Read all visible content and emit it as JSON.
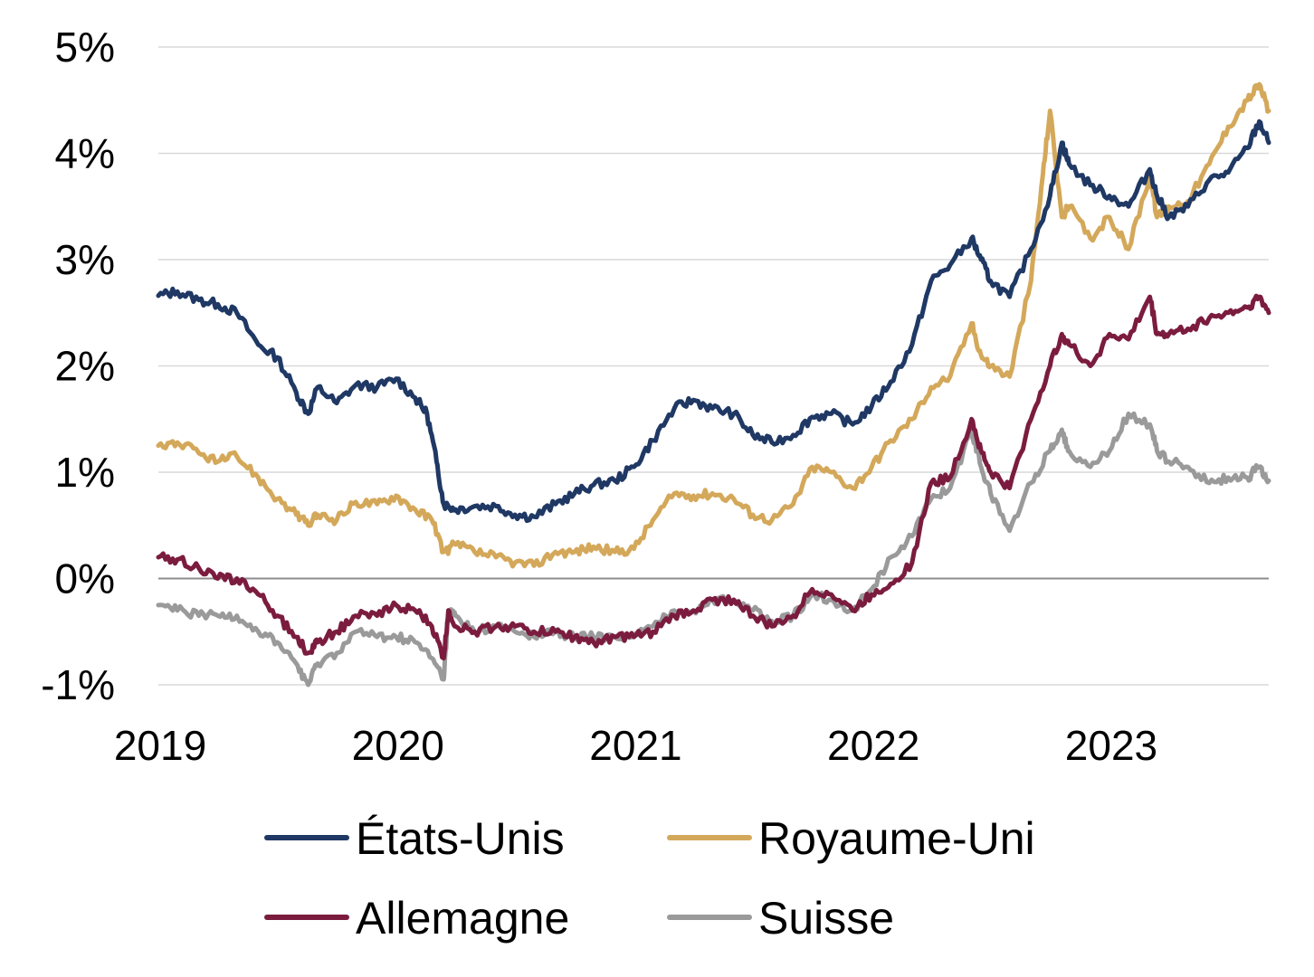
{
  "chart_data": {
    "type": "line",
    "title": "",
    "xlabel": "",
    "ylabel": "",
    "xlim": [
      2019.0,
      2023.67
    ],
    "ylim": [
      -1,
      5
    ],
    "grid": true,
    "legend_position": "bottom",
    "x_ticks": [
      {
        "value": 2019,
        "label": "2019"
      },
      {
        "value": 2020,
        "label": "2020"
      },
      {
        "value": 2021,
        "label": "2021"
      },
      {
        "value": 2022,
        "label": "2022"
      },
      {
        "value": 2023,
        "label": "2023"
      }
    ],
    "y_ticks": [
      {
        "value": -1,
        "label": "-1%"
      },
      {
        "value": 0,
        "label": "0%"
      },
      {
        "value": 1,
        "label": "1%"
      },
      {
        "value": 2,
        "label": "2%"
      },
      {
        "value": 3,
        "label": "3%"
      },
      {
        "value": 4,
        "label": "4%"
      },
      {
        "value": 5,
        "label": "5%"
      }
    ],
    "series": [
      {
        "name": "États-Unis",
        "color": "#1f3864",
        "points": [
          [
            2019.0,
            2.66
          ],
          [
            2019.08,
            2.7
          ],
          [
            2019.17,
            2.62
          ],
          [
            2019.25,
            2.58
          ],
          [
            2019.33,
            2.5
          ],
          [
            2019.42,
            2.2
          ],
          [
            2019.5,
            2.08
          ],
          [
            2019.58,
            1.75
          ],
          [
            2019.63,
            1.55
          ],
          [
            2019.67,
            1.8
          ],
          [
            2019.75,
            1.65
          ],
          [
            2019.83,
            1.82
          ],
          [
            2019.92,
            1.8
          ],
          [
            2020.0,
            1.88
          ],
          [
            2020.08,
            1.7
          ],
          [
            2020.13,
            1.55
          ],
          [
            2020.17,
            1.1
          ],
          [
            2020.2,
            0.7
          ],
          [
            2020.25,
            0.65
          ],
          [
            2020.33,
            0.68
          ],
          [
            2020.42,
            0.68
          ],
          [
            2020.5,
            0.6
          ],
          [
            2020.58,
            0.58
          ],
          [
            2020.67,
            0.7
          ],
          [
            2020.75,
            0.8
          ],
          [
            2020.83,
            0.88
          ],
          [
            2020.92,
            0.92
          ],
          [
            2021.0,
            1.05
          ],
          [
            2021.08,
            1.3
          ],
          [
            2021.17,
            1.6
          ],
          [
            2021.25,
            1.68
          ],
          [
            2021.33,
            1.6
          ],
          [
            2021.42,
            1.55
          ],
          [
            2021.5,
            1.35
          ],
          [
            2021.58,
            1.28
          ],
          [
            2021.67,
            1.35
          ],
          [
            2021.75,
            1.52
          ],
          [
            2021.83,
            1.55
          ],
          [
            2021.92,
            1.45
          ],
          [
            2022.0,
            1.62
          ],
          [
            2022.08,
            1.85
          ],
          [
            2022.17,
            2.2
          ],
          [
            2022.25,
            2.8
          ],
          [
            2022.33,
            2.95
          ],
          [
            2022.42,
            3.2
          ],
          [
            2022.46,
            3.0
          ],
          [
            2022.5,
            2.8
          ],
          [
            2022.58,
            2.65
          ],
          [
            2022.67,
            3.1
          ],
          [
            2022.75,
            3.6
          ],
          [
            2022.8,
            4.1
          ],
          [
            2022.83,
            3.9
          ],
          [
            2022.92,
            3.7
          ],
          [
            2023.0,
            3.6
          ],
          [
            2023.08,
            3.5
          ],
          [
            2023.17,
            3.85
          ],
          [
            2023.2,
            3.6
          ],
          [
            2023.25,
            3.4
          ],
          [
            2023.33,
            3.5
          ],
          [
            2023.42,
            3.75
          ],
          [
            2023.5,
            3.82
          ],
          [
            2023.58,
            4.05
          ],
          [
            2023.63,
            4.3
          ],
          [
            2023.67,
            4.1
          ]
        ]
      },
      {
        "name": "Royaume-Uni",
        "color": "#d4a85a",
        "points": [
          [
            2019.0,
            1.25
          ],
          [
            2019.08,
            1.28
          ],
          [
            2019.17,
            1.18
          ],
          [
            2019.25,
            1.1
          ],
          [
            2019.33,
            1.15
          ],
          [
            2019.42,
            0.95
          ],
          [
            2019.5,
            0.75
          ],
          [
            2019.58,
            0.6
          ],
          [
            2019.63,
            0.5
          ],
          [
            2019.67,
            0.6
          ],
          [
            2019.75,
            0.55
          ],
          [
            2019.83,
            0.72
          ],
          [
            2019.92,
            0.7
          ],
          [
            2020.0,
            0.78
          ],
          [
            2020.08,
            0.65
          ],
          [
            2020.15,
            0.55
          ],
          [
            2020.2,
            0.25
          ],
          [
            2020.25,
            0.32
          ],
          [
            2020.33,
            0.25
          ],
          [
            2020.42,
            0.2
          ],
          [
            2020.5,
            0.15
          ],
          [
            2020.58,
            0.12
          ],
          [
            2020.67,
            0.25
          ],
          [
            2020.75,
            0.25
          ],
          [
            2020.83,
            0.3
          ],
          [
            2020.92,
            0.25
          ],
          [
            2021.0,
            0.28
          ],
          [
            2021.08,
            0.55
          ],
          [
            2021.17,
            0.8
          ],
          [
            2021.25,
            0.78
          ],
          [
            2021.33,
            0.8
          ],
          [
            2021.42,
            0.75
          ],
          [
            2021.5,
            0.6
          ],
          [
            2021.58,
            0.55
          ],
          [
            2021.67,
            0.7
          ],
          [
            2021.75,
            1.05
          ],
          [
            2021.83,
            1.0
          ],
          [
            2021.92,
            0.85
          ],
          [
            2022.0,
            1.05
          ],
          [
            2022.08,
            1.3
          ],
          [
            2022.17,
            1.5
          ],
          [
            2022.25,
            1.8
          ],
          [
            2022.33,
            1.9
          ],
          [
            2022.42,
            2.4
          ],
          [
            2022.46,
            2.1
          ],
          [
            2022.5,
            2.0
          ],
          [
            2022.58,
            1.9
          ],
          [
            2022.67,
            2.8
          ],
          [
            2022.72,
            3.8
          ],
          [
            2022.75,
            4.4
          ],
          [
            2022.8,
            3.4
          ],
          [
            2022.83,
            3.5
          ],
          [
            2022.92,
            3.2
          ],
          [
            2023.0,
            3.4
          ],
          [
            2023.08,
            3.1
          ],
          [
            2023.17,
            3.8
          ],
          [
            2023.2,
            3.4
          ],
          [
            2023.25,
            3.5
          ],
          [
            2023.33,
            3.55
          ],
          [
            2023.42,
            3.9
          ],
          [
            2023.5,
            4.25
          ],
          [
            2023.58,
            4.5
          ],
          [
            2023.63,
            4.65
          ],
          [
            2023.67,
            4.4
          ]
        ]
      },
      {
        "name": "Allemagne",
        "color": "#7b1c3e",
        "points": [
          [
            2019.0,
            0.2
          ],
          [
            2019.08,
            0.18
          ],
          [
            2019.17,
            0.1
          ],
          [
            2019.25,
            0.0
          ],
          [
            2019.33,
            0.0
          ],
          [
            2019.42,
            -0.15
          ],
          [
            2019.5,
            -0.35
          ],
          [
            2019.58,
            -0.55
          ],
          [
            2019.63,
            -0.7
          ],
          [
            2019.67,
            -0.6
          ],
          [
            2019.75,
            -0.5
          ],
          [
            2019.83,
            -0.35
          ],
          [
            2019.92,
            -0.35
          ],
          [
            2020.0,
            -0.25
          ],
          [
            2020.08,
            -0.3
          ],
          [
            2020.15,
            -0.45
          ],
          [
            2020.2,
            -0.75
          ],
          [
            2020.22,
            -0.3
          ],
          [
            2020.25,
            -0.45
          ],
          [
            2020.33,
            -0.5
          ],
          [
            2020.42,
            -0.45
          ],
          [
            2020.5,
            -0.45
          ],
          [
            2020.58,
            -0.5
          ],
          [
            2020.67,
            -0.5
          ],
          [
            2020.75,
            -0.55
          ],
          [
            2020.83,
            -0.6
          ],
          [
            2020.92,
            -0.55
          ],
          [
            2021.0,
            -0.55
          ],
          [
            2021.08,
            -0.5
          ],
          [
            2021.17,
            -0.35
          ],
          [
            2021.25,
            -0.3
          ],
          [
            2021.33,
            -0.2
          ],
          [
            2021.42,
            -0.2
          ],
          [
            2021.5,
            -0.35
          ],
          [
            2021.58,
            -0.45
          ],
          [
            2021.67,
            -0.35
          ],
          [
            2021.75,
            -0.1
          ],
          [
            2021.83,
            -0.15
          ],
          [
            2021.92,
            -0.3
          ],
          [
            2022.0,
            -0.15
          ],
          [
            2022.08,
            -0.05
          ],
          [
            2022.17,
            0.15
          ],
          [
            2022.25,
            0.9
          ],
          [
            2022.33,
            0.95
          ],
          [
            2022.42,
            1.5
          ],
          [
            2022.46,
            1.2
          ],
          [
            2022.5,
            1.0
          ],
          [
            2022.58,
            0.85
          ],
          [
            2022.67,
            1.5
          ],
          [
            2022.75,
            2.0
          ],
          [
            2022.8,
            2.3
          ],
          [
            2022.83,
            2.2
          ],
          [
            2022.92,
            2.0
          ],
          [
            2023.0,
            2.3
          ],
          [
            2023.08,
            2.25
          ],
          [
            2023.17,
            2.65
          ],
          [
            2023.2,
            2.3
          ],
          [
            2023.25,
            2.3
          ],
          [
            2023.33,
            2.35
          ],
          [
            2023.42,
            2.45
          ],
          [
            2023.5,
            2.5
          ],
          [
            2023.58,
            2.55
          ],
          [
            2023.63,
            2.65
          ],
          [
            2023.67,
            2.5
          ]
        ]
      },
      {
        "name": "Suisse",
        "color": "#9a9a9a",
        "points": [
          [
            2019.0,
            -0.25
          ],
          [
            2019.08,
            -0.3
          ],
          [
            2019.17,
            -0.35
          ],
          [
            2019.25,
            -0.35
          ],
          [
            2019.33,
            -0.35
          ],
          [
            2019.42,
            -0.5
          ],
          [
            2019.5,
            -0.6
          ],
          [
            2019.58,
            -0.8
          ],
          [
            2019.63,
            -1.0
          ],
          [
            2019.67,
            -0.8
          ],
          [
            2019.75,
            -0.7
          ],
          [
            2019.83,
            -0.5
          ],
          [
            2019.92,
            -0.55
          ],
          [
            2020.0,
            -0.55
          ],
          [
            2020.08,
            -0.6
          ],
          [
            2020.15,
            -0.75
          ],
          [
            2020.2,
            -0.95
          ],
          [
            2020.22,
            -0.3
          ],
          [
            2020.25,
            -0.35
          ],
          [
            2020.33,
            -0.5
          ],
          [
            2020.42,
            -0.45
          ],
          [
            2020.5,
            -0.5
          ],
          [
            2020.58,
            -0.55
          ],
          [
            2020.67,
            -0.5
          ],
          [
            2020.75,
            -0.55
          ],
          [
            2020.83,
            -0.55
          ],
          [
            2020.92,
            -0.55
          ],
          [
            2021.0,
            -0.55
          ],
          [
            2021.08,
            -0.45
          ],
          [
            2021.17,
            -0.3
          ],
          [
            2021.25,
            -0.3
          ],
          [
            2021.33,
            -0.2
          ],
          [
            2021.42,
            -0.2
          ],
          [
            2021.5,
            -0.3
          ],
          [
            2021.58,
            -0.4
          ],
          [
            2021.67,
            -0.35
          ],
          [
            2021.75,
            -0.15
          ],
          [
            2021.83,
            -0.2
          ],
          [
            2021.92,
            -0.3
          ],
          [
            2022.0,
            -0.1
          ],
          [
            2022.08,
            0.2
          ],
          [
            2022.17,
            0.4
          ],
          [
            2022.25,
            0.75
          ],
          [
            2022.33,
            0.85
          ],
          [
            2022.42,
            1.4
          ],
          [
            2022.46,
            1.05
          ],
          [
            2022.5,
            0.8
          ],
          [
            2022.58,
            0.45
          ],
          [
            2022.67,
            0.9
          ],
          [
            2022.75,
            1.2
          ],
          [
            2022.8,
            1.4
          ],
          [
            2022.83,
            1.2
          ],
          [
            2022.92,
            1.05
          ],
          [
            2023.0,
            1.2
          ],
          [
            2023.08,
            1.55
          ],
          [
            2023.17,
            1.45
          ],
          [
            2023.2,
            1.2
          ],
          [
            2023.25,
            1.1
          ],
          [
            2023.33,
            1.05
          ],
          [
            2023.42,
            0.9
          ],
          [
            2023.5,
            0.95
          ],
          [
            2023.58,
            0.95
          ],
          [
            2023.63,
            1.05
          ],
          [
            2023.67,
            0.92
          ]
        ]
      }
    ]
  }
}
